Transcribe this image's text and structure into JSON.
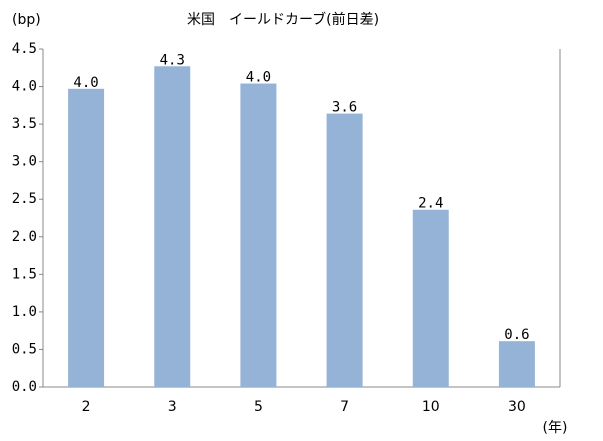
{
  "chart_data": {
    "type": "bar",
    "title": "米国　イールドカーブ(前日差)",
    "y_label": "(bp)",
    "x_label": "(年)",
    "categories": [
      "2",
      "3",
      "5",
      "7",
      "10",
      "30"
    ],
    "values": [
      3.97,
      4.27,
      4.04,
      3.64,
      2.36,
      0.61
    ],
    "value_labels": [
      "4.0",
      "4.3",
      "4.0",
      "3.6",
      "2.4",
      "0.6"
    ],
    "color": "#95b3d7",
    "ylim": [
      0,
      4.5
    ],
    "yticks": [
      {
        "value": 0,
        "label": "0.0"
      },
      0.5,
      {
        "value": 1,
        "label": "1.0"
      },
      1.5,
      {
        "value": 2,
        "label": "2.0"
      },
      2.5,
      {
        "value": 3,
        "label": "3.0"
      },
      3.5,
      {
        "value": 4,
        "label": "4.0"
      },
      4.5
    ]
  }
}
